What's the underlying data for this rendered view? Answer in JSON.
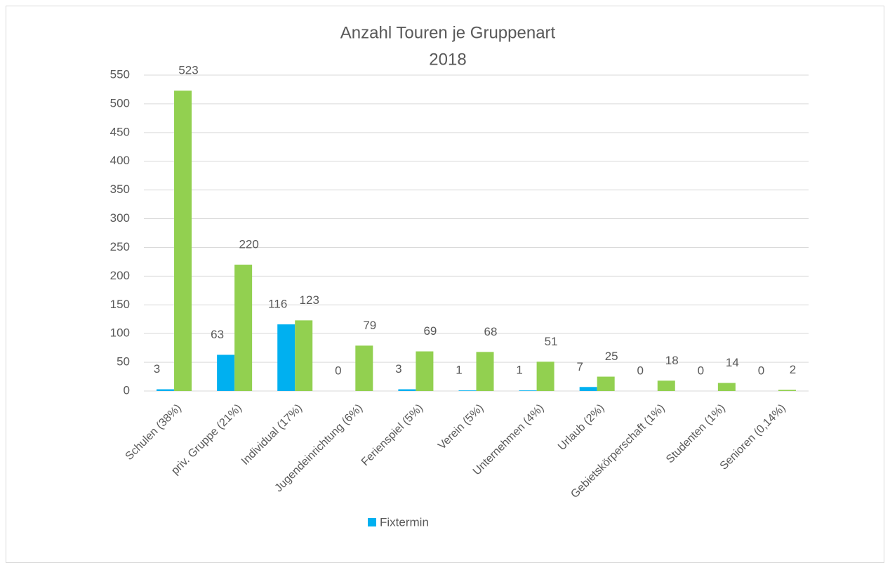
{
  "chart_data": {
    "type": "bar",
    "title": "Anzahl Touren je Gruppenart",
    "subtitle": "2018",
    "categories": [
      "Schulen (38%)",
      "priv. Gruppe (21%)",
      "Individual (17%)",
      "Jugendeinrichtung (6%)",
      "Ferienspiel (5%)",
      "Verein (5%)",
      "Unternehmen (4%)",
      "Urlaub (2%)",
      "Gebietskörperschaft (1%)",
      "Studenten (1%)",
      "Senioren (0,14%)"
    ],
    "series": [
      {
        "name": "Fixtermin",
        "color": "#00b0f0",
        "values": [
          3,
          63,
          116,
          0,
          3,
          1,
          1,
          7,
          0,
          0,
          0
        ]
      },
      {
        "color": "#92d050",
        "values": [
          523,
          220,
          123,
          79,
          69,
          68,
          51,
          25,
          18,
          14,
          2
        ]
      }
    ],
    "ylim": [
      0,
      550
    ],
    "yticks": [
      0,
      50,
      100,
      150,
      200,
      250,
      300,
      350,
      400,
      450,
      500,
      550
    ],
    "grid": true,
    "legend": "bottom"
  }
}
